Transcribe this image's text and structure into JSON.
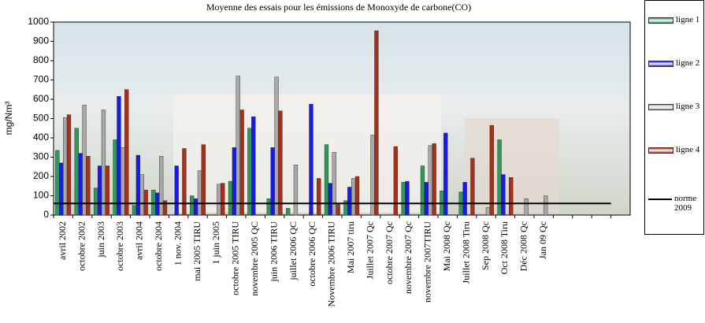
{
  "chart_data": {
    "type": "bar",
    "title": "Moyenne des essais pour les émissions de Monoxyde de carbone(CO)",
    "y_label": "mg/Nm³",
    "categories": [
      "avril 2002",
      "octobre 2002",
      "juin 2003",
      "octobre 2003",
      "avril 2004",
      "octobre 2004",
      "1 nov. 2004",
      "mai 2005 TIRU",
      "1 juin 2005",
      "octobre 2005 TIRU",
      "novembre 2005 QC",
      "juin 2006 TIRU",
      "juillet 2006 QC",
      "octobre 2006 QC",
      "Novembre 2006 TIRU",
      "Mai 2007 tiru",
      "Juillet 2007 Qc",
      "octobre 2007 Qc",
      "novembre 2007 Qc",
      "novembre 2007TIRU",
      "Mai 2008 Qc",
      "Juillet 2008 Tiru",
      "Sep 2008  Qc",
      "Oct 2008  Tiru",
      "Déc 2008 Qc",
      "Jan 09 Qc",
      null,
      null,
      null,
      null
    ],
    "series": [
      {
        "name": "ligne 1",
        "color": "#2e9a5a",
        "values": [
          335,
          450,
          140,
          390,
          50,
          130,
          null,
          100,
          null,
          175,
          450,
          85,
          35,
          null,
          365,
          75,
          null,
          null,
          170,
          255,
          125,
          120,
          null,
          390,
          null,
          null,
          null,
          null,
          null,
          null
        ]
      },
      {
        "name": "ligne 2",
        "color": "#1a1aee",
        "values": [
          270,
          320,
          255,
          615,
          310,
          115,
          255,
          85,
          null,
          350,
          510,
          350,
          null,
          575,
          165,
          145,
          null,
          null,
          175,
          170,
          425,
          170,
          null,
          210,
          null,
          null,
          null,
          null,
          null,
          null
        ]
      },
      {
        "name": "ligne 3",
        "color": "#a8a8a8",
        "values": [
          505,
          570,
          545,
          350,
          210,
          305,
          null,
          230,
          160,
          720,
          null,
          715,
          260,
          null,
          325,
          190,
          415,
          null,
          null,
          360,
          null,
          null,
          40,
          null,
          85,
          100,
          null,
          null,
          null,
          null
        ]
      },
      {
        "name": "ligne 4",
        "color": "#a8301a",
        "values": [
          520,
          305,
          255,
          650,
          130,
          75,
          345,
          365,
          165,
          545,
          null,
          540,
          null,
          190,
          55,
          200,
          955,
          355,
          null,
          370,
          null,
          295,
          465,
          195,
          null,
          null,
          null,
          null,
          null,
          null
        ]
      }
    ],
    "reference_line": {
      "name": "norme 2009",
      "color": "#000000",
      "value": 60
    },
    "ylim": [
      0,
      1000
    ],
    "yticks": [
      0,
      100,
      200,
      300,
      400,
      500,
      600,
      700,
      800,
      900,
      1000
    ]
  }
}
